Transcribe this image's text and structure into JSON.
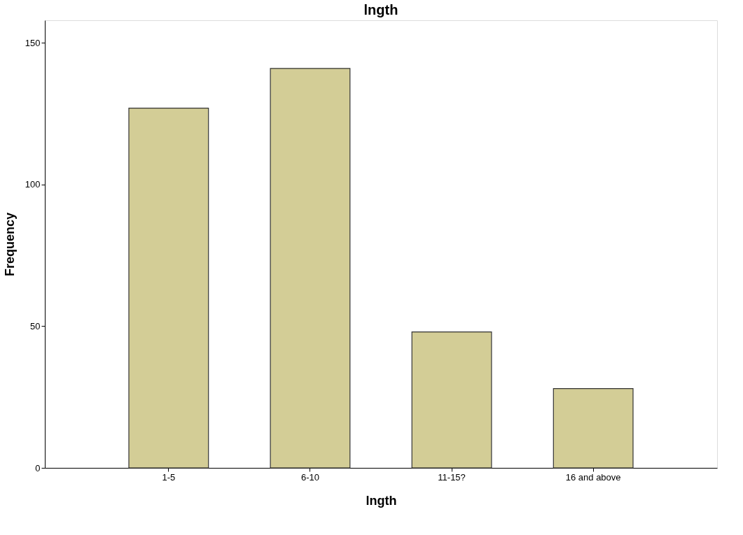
{
  "chart_data": {
    "type": "bar",
    "title": "lngth",
    "xlabel": "lngth",
    "ylabel": "Frequency",
    "categories": [
      "1-5",
      "6-10",
      "11-15?",
      "16 and above"
    ],
    "values": [
      127,
      141,
      48,
      28
    ],
    "color": "#d3cd96",
    "ylim": [
      0,
      158
    ],
    "yticks": [
      0,
      50,
      100,
      150
    ],
    "grid": false
  }
}
